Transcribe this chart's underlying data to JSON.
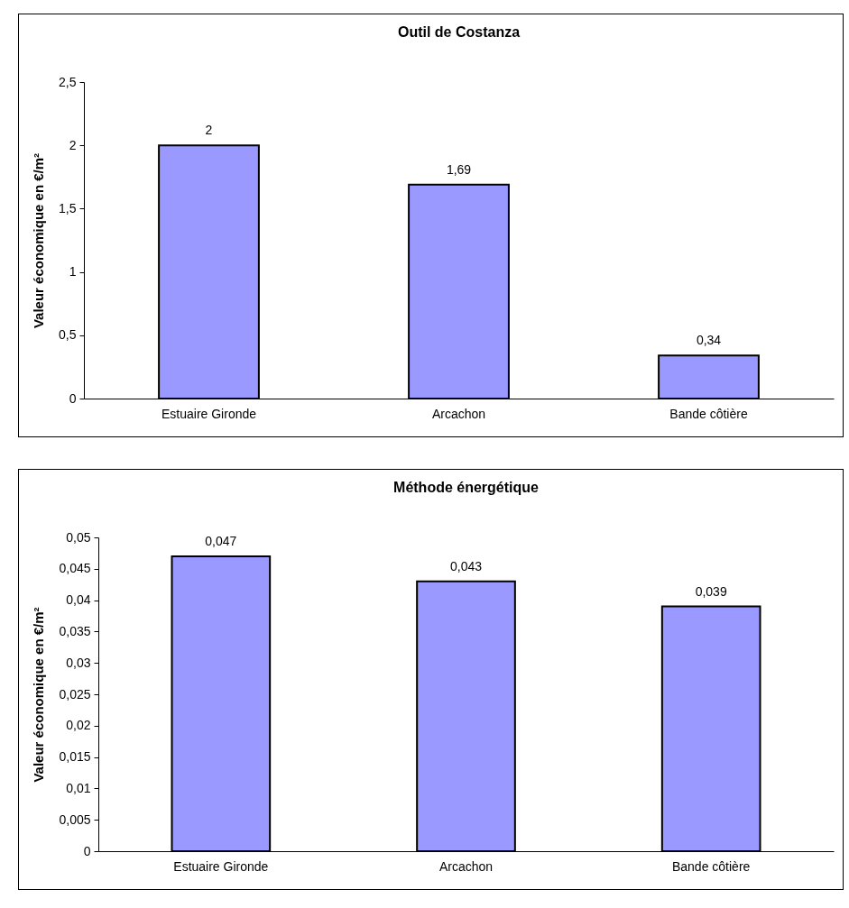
{
  "chart_data": [
    {
      "type": "bar",
      "title": "Outil de Costanza",
      "ylabel": "Valeur économique en €/m²",
      "categories": [
        "Estuaire Gironde",
        "Arcachon",
        "Bande côtière"
      ],
      "values": [
        2,
        1.69,
        0.34
      ],
      "value_labels": [
        "2",
        "1,69",
        "0,34"
      ],
      "color": "#9999ff",
      "ylim": [
        0,
        2.5
      ],
      "yticks": [
        0,
        {
          "value": 0.5,
          "label": "0,5"
        },
        1,
        {
          "value": 1.5,
          "label": "1,5"
        },
        2,
        {
          "value": 2.5,
          "label": "2,5"
        }
      ],
      "grid": false
    },
    {
      "type": "bar",
      "title": "Méthode énergétique",
      "ylabel": "Valeur économique en €/m²",
      "categories": [
        "Estuaire Gironde",
        "Arcachon",
        "Bande côtière"
      ],
      "values": [
        0.047,
        0.043,
        0.039
      ],
      "value_labels": [
        "0,047",
        "0,043",
        "0,039"
      ],
      "color": "#9999ff",
      "ylim": [
        0,
        0.05
      ],
      "yticks": [
        0,
        {
          "value": 0.005,
          "label": "0,005"
        },
        {
          "value": 0.01,
          "label": "0,01"
        },
        {
          "value": 0.015,
          "label": "0,015"
        },
        {
          "value": 0.02,
          "label": "0,02"
        },
        {
          "value": 0.025,
          "label": "0,025"
        },
        {
          "value": 0.03,
          "label": "0,03"
        },
        {
          "value": 0.035,
          "label": "0,035"
        },
        {
          "value": 0.04,
          "label": "0,04"
        },
        {
          "value": 0.045,
          "label": "0,045"
        },
        {
          "value": 0.05,
          "label": "0,05"
        }
      ],
      "grid": false
    }
  ]
}
